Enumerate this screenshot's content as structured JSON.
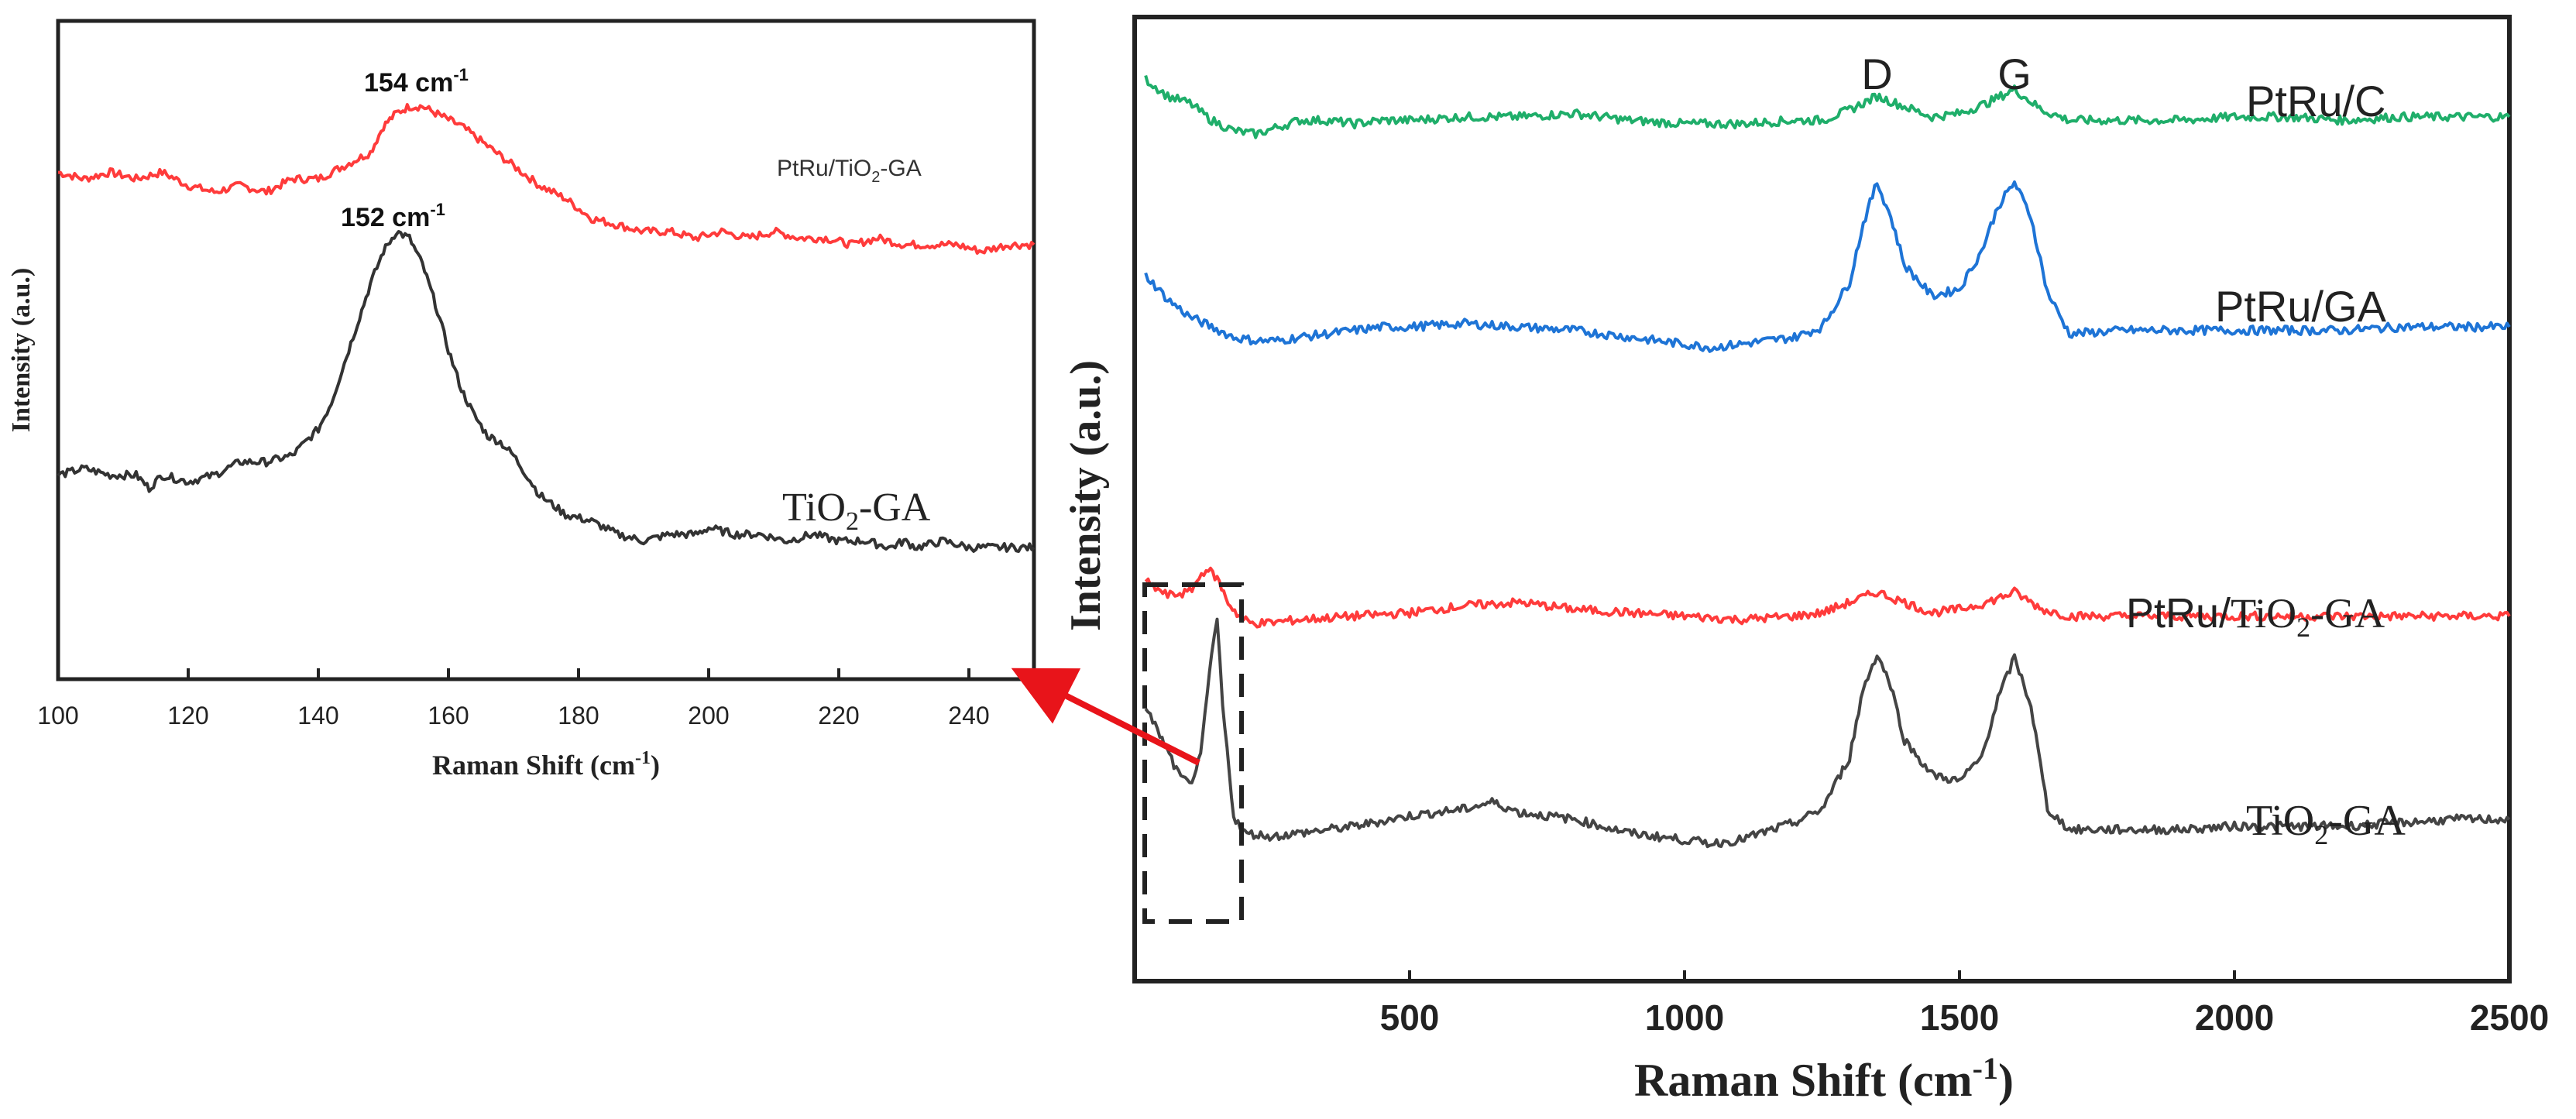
{
  "chart_data": [
    {
      "type": "line",
      "title": "",
      "xlabel_main": "Raman Shift (cm",
      "xlabel_sup": "-1",
      "xlabel_close": ")",
      "ylabel": "Intensity (a.u.)",
      "xlim": [
        100,
        250
      ],
      "xticks": [
        100,
        120,
        140,
        160,
        180,
        200,
        220,
        240
      ],
      "yticks": [],
      "grid": false,
      "legend": "none",
      "series": [
        {
          "name": "PtRu/TiO2-GA",
          "label_prefix": "PtRu/",
          "label_main": "TiO",
          "label_sub": "2",
          "label_suffix": "-GA",
          "color": "#ff3b3b",
          "x": [
            100,
            104,
            108,
            112,
            116,
            120,
            124,
            128,
            132,
            136,
            140,
            144,
            148,
            150,
            152,
            154,
            156,
            158,
            160,
            162,
            166,
            170,
            174,
            178,
            182,
            186,
            190,
            194,
            198,
            202,
            206,
            210,
            214,
            218,
            222,
            226,
            230,
            234,
            238,
            242,
            246,
            250
          ],
          "y": [
            0.77,
            0.76,
            0.77,
            0.76,
            0.77,
            0.75,
            0.74,
            0.75,
            0.74,
            0.76,
            0.76,
            0.78,
            0.8,
            0.84,
            0.86,
            0.87,
            0.87,
            0.86,
            0.85,
            0.84,
            0.81,
            0.78,
            0.75,
            0.73,
            0.7,
            0.69,
            0.68,
            0.68,
            0.67,
            0.68,
            0.67,
            0.68,
            0.67,
            0.67,
            0.66,
            0.67,
            0.66,
            0.66,
            0.66,
            0.65,
            0.66,
            0.66
          ]
        },
        {
          "name": "TiO2-GA",
          "label_prefix": "",
          "label_main": "TiO",
          "label_sub": "2",
          "label_suffix": "-GA",
          "color": "#333333",
          "x": [
            100,
            104,
            108,
            112,
            114,
            116,
            120,
            124,
            128,
            132,
            136,
            140,
            142,
            144,
            146,
            148,
            150,
            152,
            154,
            156,
            158,
            160,
            162,
            164,
            166,
            168,
            170,
            174,
            178,
            182,
            186,
            190,
            194,
            198,
            200,
            204,
            208,
            212,
            216,
            220,
            224,
            228,
            230,
            232,
            236,
            240,
            244,
            248,
            250
          ],
          "y": [
            0.31,
            0.32,
            0.31,
            0.31,
            0.29,
            0.31,
            0.3,
            0.31,
            0.33,
            0.33,
            0.34,
            0.38,
            0.42,
            0.48,
            0.54,
            0.6,
            0.65,
            0.68,
            0.67,
            0.63,
            0.57,
            0.5,
            0.44,
            0.4,
            0.37,
            0.36,
            0.34,
            0.28,
            0.25,
            0.24,
            0.22,
            0.21,
            0.22,
            0.22,
            0.23,
            0.22,
            0.22,
            0.21,
            0.22,
            0.21,
            0.21,
            0.2,
            0.21,
            0.2,
            0.21,
            0.2,
            0.2,
            0.2,
            0.2
          ]
        }
      ],
      "annotations": [
        {
          "text": "154 cm",
          "sup": "-1",
          "x": 154,
          "y": 0.92
        },
        {
          "text": "152 cm",
          "sup": "-1",
          "x": 152,
          "y": 0.72
        }
      ]
    },
    {
      "type": "line",
      "title": "",
      "xlabel_main": "Raman Shift (cm",
      "xlabel_sup": "-1",
      "xlabel_close": ")",
      "ylabel": "Intensity (a.u.)",
      "xlim": [
        0,
        2500
      ],
      "xticks": [
        500,
        1000,
        1500,
        2000,
        2500
      ],
      "yticks": [],
      "grid": false,
      "legend": "none",
      "peak_labels": [
        {
          "text": "D",
          "x": 1350
        },
        {
          "text": "G",
          "x": 1600
        }
      ],
      "series": [
        {
          "name": "PtRu/C",
          "label_prefix": "PtRu/C",
          "label_main": "",
          "label_sub": "",
          "label_suffix": "",
          "color": "#1fae6a",
          "x": [
            20,
            60,
            100,
            140,
            180,
            220,
            260,
            300,
            350,
            400,
            450,
            500,
            600,
            700,
            800,
            900,
            1000,
            1100,
            1200,
            1250,
            1300,
            1350,
            1400,
            1450,
            1500,
            1550,
            1600,
            1650,
            1700,
            1800,
            1900,
            2000,
            2100,
            2200,
            2300,
            2400,
            2500
          ],
          "y": [
            3.52,
            3.47,
            3.45,
            3.4,
            3.37,
            3.36,
            3.38,
            3.4,
            3.4,
            3.39,
            3.4,
            3.4,
            3.41,
            3.41,
            3.42,
            3.4,
            3.39,
            3.39,
            3.4,
            3.4,
            3.43,
            3.47,
            3.44,
            3.41,
            3.42,
            3.45,
            3.49,
            3.43,
            3.4,
            3.4,
            3.4,
            3.41,
            3.41,
            3.4,
            3.41,
            3.41,
            3.41
          ]
        },
        {
          "name": "PtRu/GA",
          "label_prefix": "PtRu/GA",
          "label_main": "",
          "label_sub": "",
          "label_suffix": "",
          "color": "#1e74d6",
          "x": [
            20,
            60,
            100,
            140,
            180,
            220,
            260,
            300,
            350,
            400,
            450,
            500,
            600,
            700,
            800,
            900,
            1000,
            1050,
            1100,
            1200,
            1250,
            1300,
            1325,
            1350,
            1375,
            1400,
            1450,
            1500,
            1540,
            1570,
            1600,
            1630,
            1660,
            1700,
            1800,
            1900,
            2000,
            2100,
            2200,
            2300,
            2400,
            2500
          ],
          "y": [
            2.95,
            2.88,
            2.83,
            2.8,
            2.77,
            2.76,
            2.76,
            2.77,
            2.78,
            2.79,
            2.8,
            2.8,
            2.81,
            2.8,
            2.79,
            2.77,
            2.75,
            2.74,
            2.75,
            2.77,
            2.8,
            2.93,
            3.1,
            3.22,
            3.12,
            2.98,
            2.89,
            2.91,
            3.02,
            3.15,
            3.22,
            3.12,
            2.9,
            2.78,
            2.79,
            2.79,
            2.79,
            2.79,
            2.79,
            2.8,
            2.8,
            2.8
          ]
        },
        {
          "name": "PtRu/TiO2-GA",
          "label_prefix": "PtRu/",
          "label_main": "TiO",
          "label_sub": "2",
          "label_suffix": "-GA",
          "color": "#ff3b3b",
          "x": [
            20,
            60,
            100,
            130,
            150,
            170,
            190,
            210,
            240,
            300,
            400,
            500,
            600,
            700,
            800,
            900,
            1000,
            1100,
            1200,
            1250,
            1300,
            1350,
            1400,
            1450,
            1500,
            1550,
            1600,
            1650,
            1700,
            1800,
            1900,
            2000,
            2100,
            2200,
            2300,
            2400,
            2500
          ],
          "y": [
            2.06,
            2.02,
            2.03,
            2.1,
            2.07,
            2.0,
            1.96,
            1.94,
            1.94,
            1.95,
            1.96,
            1.97,
            1.99,
            2.0,
            1.98,
            1.97,
            1.96,
            1.95,
            1.96,
            1.97,
            2.0,
            2.03,
            2.0,
            1.97,
            1.98,
            2.0,
            2.03,
            1.98,
            1.96,
            1.96,
            1.96,
            1.96,
            1.96,
            1.96,
            1.96,
            1.96,
            1.96
          ]
        },
        {
          "name": "TiO2-GA",
          "label_prefix": "",
          "label_main": "TiO",
          "label_sub": "2",
          "label_suffix": "-GA",
          "color": "#444444",
          "x": [
            20,
            50,
            80,
            100,
            120,
            140,
            150,
            160,
            180,
            200,
            250,
            300,
            400,
            500,
            600,
            650,
            700,
            800,
            900,
            1000,
            1050,
            1100,
            1200,
            1250,
            1300,
            1325,
            1350,
            1375,
            1400,
            1450,
            1500,
            1540,
            1570,
            1600,
            1630,
            1660,
            1700,
            1800,
            1900,
            2000,
            2100,
            2200,
            2300,
            2400,
            2500
          ],
          "y": [
            1.7,
            1.6,
            1.5,
            1.47,
            1.55,
            1.85,
            1.95,
            1.7,
            1.38,
            1.33,
            1.32,
            1.33,
            1.35,
            1.38,
            1.4,
            1.42,
            1.39,
            1.37,
            1.33,
            1.31,
            1.3,
            1.31,
            1.36,
            1.4,
            1.55,
            1.75,
            1.85,
            1.76,
            1.6,
            1.5,
            1.48,
            1.55,
            1.72,
            1.84,
            1.7,
            1.4,
            1.34,
            1.34,
            1.34,
            1.35,
            1.35,
            1.35,
            1.36,
            1.37,
            1.37
          ]
        }
      ]
    }
  ]
}
